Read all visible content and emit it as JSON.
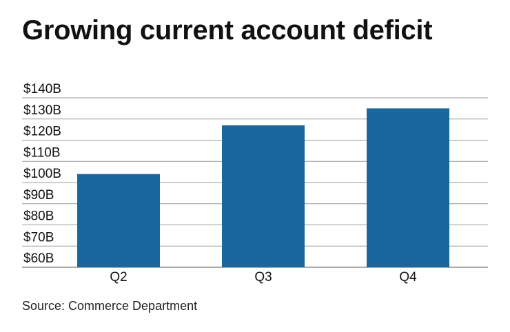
{
  "chart_data": {
    "type": "bar",
    "title": "Growing current account deficit",
    "categories": [
      "Q2",
      "Q3",
      "Q4"
    ],
    "values": [
      104,
      127,
      135
    ],
    "unit_prefix": "$",
    "unit_suffix": "B",
    "ylim": [
      60,
      140
    ],
    "yticks": [
      60,
      70,
      80,
      90,
      100,
      110,
      120,
      130,
      140
    ],
    "ytick_labels": [
      "$60B",
      "$70B",
      "$80B",
      "$90B",
      "$100B",
      "$110B",
      "$120B",
      "$130B",
      "$140B"
    ],
    "xlabel": "",
    "ylabel": "",
    "grid": true,
    "legend": "none",
    "colors": {
      "bar": "#1a67a0",
      "grid": "#9a9a9a",
      "axis": "#555555"
    }
  },
  "source": "Source: Commerce Department"
}
